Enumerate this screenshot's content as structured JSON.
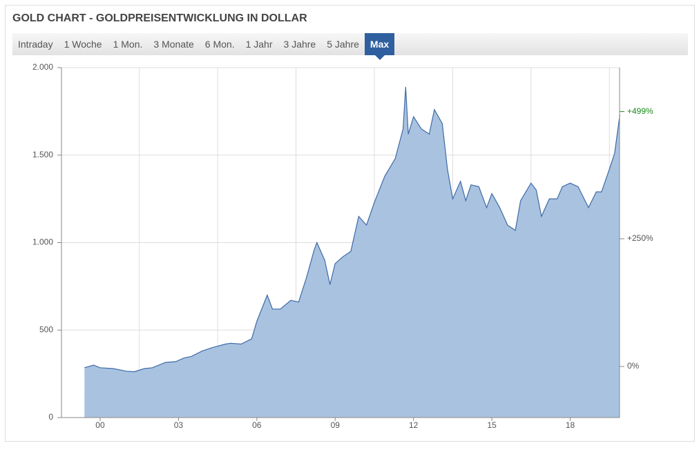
{
  "header": {
    "title": "GOLD CHART - GOLDPREISENTWICKLUNG IN DOLLAR",
    "tabs": [
      "Intraday",
      "1 Woche",
      "1 Mon.",
      "3 Monate",
      "6 Mon.",
      "1 Jahr",
      "3 Jahre",
      "5 Jahre",
      "Max"
    ],
    "active_tab": 8
  },
  "chart_data": {
    "type": "area",
    "color": "#3d6aa6",
    "fill": "#a9c2e0",
    "x": [
      1999.4,
      1999.75,
      2000.0,
      2000.5,
      2001.0,
      2001.3,
      2001.7,
      2002.0,
      2002.5,
      2002.9,
      2003.2,
      2003.5,
      2003.9,
      2004.3,
      2004.8,
      2005.0,
      2005.4,
      2005.8,
      2006.0,
      2006.4,
      2006.6,
      2006.9,
      2007.3,
      2007.6,
      2007.9,
      2008.2,
      2008.3,
      2008.6,
      2008.8,
      2009.0,
      2009.3,
      2009.6,
      2009.9,
      2010.2,
      2010.5,
      2010.9,
      2011.3,
      2011.6,
      2011.7,
      2011.8,
      2012.0,
      2012.3,
      2012.6,
      2012.8,
      2013.1,
      2013.3,
      2013.5,
      2013.8,
      2014.0,
      2014.2,
      2014.5,
      2014.8,
      2015.0,
      2015.3,
      2015.6,
      2015.9,
      2016.1,
      2016.5,
      2016.7,
      2016.9,
      2017.2,
      2017.5,
      2017.7,
      2018.0,
      2018.3,
      2018.7,
      2019.0,
      2019.2,
      2019.5,
      2019.7,
      2019.9
    ],
    "values": [
      285,
      300,
      285,
      280,
      265,
      262,
      280,
      285,
      315,
      320,
      340,
      350,
      380,
      400,
      420,
      425,
      420,
      450,
      550,
      700,
      620,
      620,
      670,
      660,
      800,
      960,
      1000,
      900,
      760,
      880,
      920,
      950,
      1150,
      1100,
      1230,
      1380,
      1480,
      1650,
      1890,
      1620,
      1720,
      1650,
      1620,
      1760,
      1680,
      1420,
      1250,
      1350,
      1240,
      1330,
      1320,
      1200,
      1280,
      1200,
      1100,
      1070,
      1240,
      1340,
      1300,
      1150,
      1250,
      1250,
      1320,
      1340,
      1320,
      1200,
      1290,
      1290,
      1420,
      1510,
      1730
    ],
    "xlim": [
      1998.52,
      2019.89
    ],
    "xticks": [
      {
        "value": 2000,
        "label": "00"
      },
      {
        "value": 2003,
        "label": "03"
      },
      {
        "value": 2006,
        "label": "06"
      },
      {
        "value": 2009,
        "label": "09"
      },
      {
        "value": 2012,
        "label": "12"
      },
      {
        "value": 2015,
        "label": "15"
      },
      {
        "value": 2018,
        "label": "18"
      }
    ],
    "xgrid": [
      2001.5,
      2004.5,
      2007.5,
      2010.5,
      2013.5,
      2016.5,
      2019.5
    ],
    "ylim": [
      0,
      2000
    ],
    "yticks": [
      0,
      {
        "value": 500,
        "label": "500"
      },
      {
        "value": 1000,
        "label": "1.000"
      },
      {
        "value": 1500,
        "label": "1.500"
      },
      {
        "value": 2000,
        "label": "2.000"
      }
    ],
    "y2lim": [
      -100,
      585
    ],
    "y2ticks": [
      {
        "value": 0,
        "label": "0%"
      },
      {
        "value": 250,
        "label": "+250%"
      }
    ],
    "last_change": {
      "value": 499,
      "label": "+499%",
      "color": "#1a8a1a"
    },
    "grid": true
  }
}
